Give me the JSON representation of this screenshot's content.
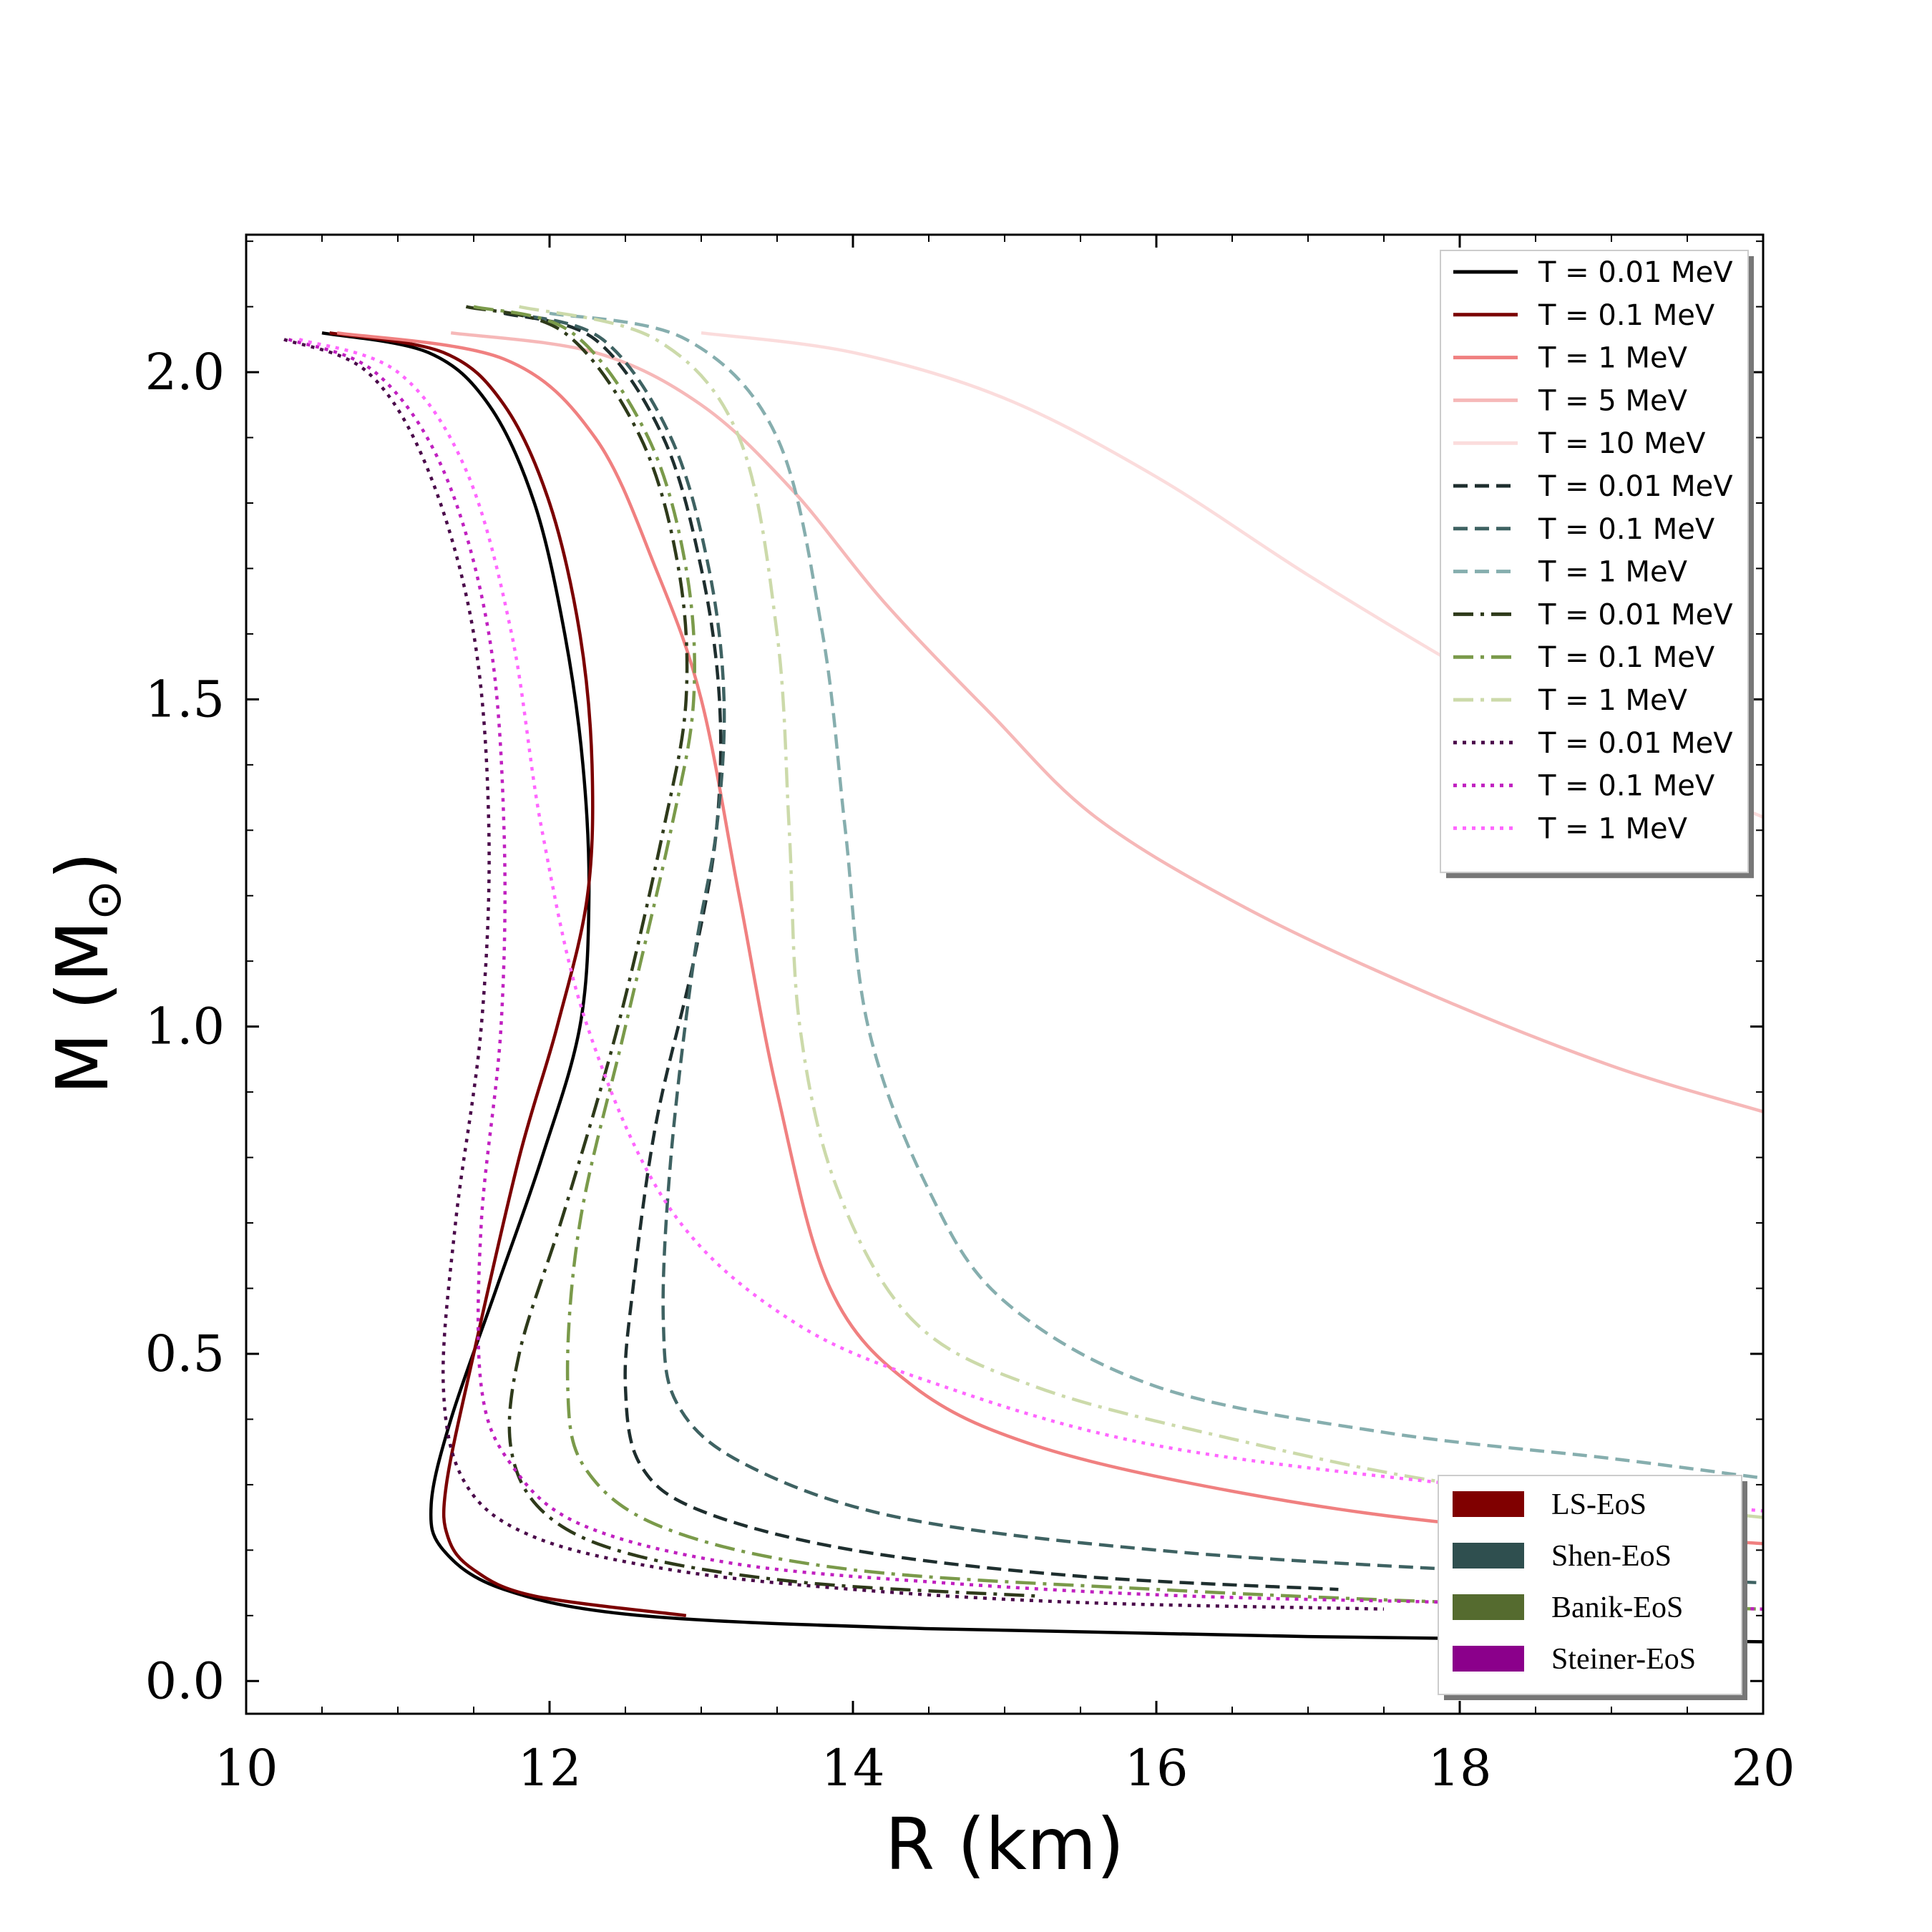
{
  "chart_data": {
    "type": "line",
    "title": "",
    "xlabel": "R (km)",
    "ylabel_main": "M (M",
    "ylabel_sub": "⊙",
    "ylabel_close": ")",
    "xlim": [
      10,
      20
    ],
    "ylim": [
      -0.05,
      2.21
    ],
    "xticks": [
      10,
      12,
      14,
      16,
      18,
      20
    ],
    "xtick_labels": [
      "10",
      "12",
      "14",
      "16",
      "18",
      "20"
    ],
    "yticks": [
      0.0,
      0.5,
      1.0,
      1.5,
      2.0
    ],
    "ytick_labels": [
      "0.0",
      "0.5",
      "1.0",
      "1.5",
      "2.0"
    ],
    "grid": false,
    "legend_position": "top-right",
    "series": [
      {
        "name": "T = 0.01 MeV",
        "eos": "LS",
        "color": "#000000",
        "dash": "solid",
        "x": [
          10.5,
          11.2,
          11.6,
          11.9,
          12.1,
          12.22,
          12.26,
          12.2,
          11.95,
          11.65,
          11.35,
          11.22,
          11.3,
          11.7,
          12.6,
          14.5,
          17.0,
          20.0
        ],
        "y": [
          2.06,
          2.03,
          1.95,
          1.8,
          1.6,
          1.4,
          1.2,
          1.0,
          0.8,
          0.6,
          0.4,
          0.27,
          0.2,
          0.14,
          0.1,
          0.08,
          0.068,
          0.06
        ]
      },
      {
        "name": "T = 0.1 MeV",
        "eos": "LS",
        "color": "#7b0000",
        "dash": "solid",
        "x": [
          10.55,
          11.3,
          11.7,
          12.0,
          12.2,
          12.28,
          12.25,
          12.05,
          11.8,
          11.5,
          11.32,
          11.33,
          11.5,
          11.9,
          12.9
        ],
        "y": [
          2.06,
          2.03,
          1.95,
          1.8,
          1.6,
          1.4,
          1.2,
          1.0,
          0.8,
          0.5,
          0.3,
          0.22,
          0.17,
          0.13,
          0.1
        ]
      },
      {
        "name": "T = 1 MeV",
        "eos": "LS",
        "color": "#f08080",
        "dash": "solid",
        "x": [
          10.6,
          11.7,
          12.3,
          12.7,
          13.0,
          13.25,
          13.5,
          13.85,
          14.4,
          15.2,
          16.5,
          18.0,
          20.0
        ],
        "y": [
          2.06,
          2.02,
          1.9,
          1.7,
          1.5,
          1.2,
          0.9,
          0.6,
          0.45,
          0.36,
          0.29,
          0.24,
          0.21
        ]
      },
      {
        "name": "T = 5 MeV",
        "eos": "LS",
        "color": "#f6b8b8",
        "dash": "solid",
        "x": [
          11.35,
          12.3,
          13.0,
          13.6,
          14.2,
          14.9,
          15.6,
          16.6,
          17.8,
          19.0,
          20.0
        ],
        "y": [
          2.06,
          2.03,
          1.95,
          1.82,
          1.65,
          1.48,
          1.32,
          1.18,
          1.05,
          0.94,
          0.87
        ]
      },
      {
        "name": "T = 10 MeV",
        "eos": "LS",
        "color": "#fbdcdc",
        "dash": "solid",
        "x": [
          13.0,
          14.0,
          15.0,
          16.0,
          17.0,
          18.0,
          19.0,
          20.0
        ],
        "y": [
          2.06,
          2.03,
          1.96,
          1.84,
          1.69,
          1.55,
          1.42,
          1.32
        ]
      },
      {
        "name": "T = 0.01 MeV",
        "eos": "Shen",
        "color": "#1e2e2e",
        "dash": "dashed",
        "x": [
          11.7,
          12.3,
          12.75,
          13.0,
          13.12,
          13.1,
          12.95,
          12.7,
          12.55,
          12.5,
          12.6,
          13.0,
          14.0,
          15.5,
          17.2
        ],
        "y": [
          2.09,
          2.05,
          1.9,
          1.7,
          1.5,
          1.3,
          1.1,
          0.85,
          0.6,
          0.45,
          0.33,
          0.26,
          0.2,
          0.16,
          0.14
        ]
      },
      {
        "name": "T = 0.1 MeV",
        "eos": "Shen",
        "color": "#3e6262",
        "dash": "dashed",
        "x": [
          11.75,
          12.35,
          12.8,
          13.05,
          13.15,
          13.1,
          12.95,
          12.8,
          12.75,
          12.85,
          13.3,
          14.3,
          16.0,
          18.0,
          20.0
        ],
        "y": [
          2.09,
          2.05,
          1.9,
          1.7,
          1.5,
          1.3,
          1.1,
          0.8,
          0.55,
          0.42,
          0.33,
          0.25,
          0.2,
          0.17,
          0.15
        ]
      },
      {
        "name": "T = 1 MeV",
        "eos": "Shen",
        "color": "#86aeae",
        "dash": "dashed",
        "x": [
          12.0,
          12.9,
          13.5,
          13.8,
          13.95,
          14.1,
          14.5,
          15.0,
          16.0,
          17.5,
          19.0,
          20.0
        ],
        "y": [
          2.09,
          2.05,
          1.9,
          1.6,
          1.3,
          1.0,
          0.75,
          0.58,
          0.45,
          0.38,
          0.34,
          0.31
        ]
      },
      {
        "name": "T = 0.01 MeV",
        "eos": "Banik",
        "color": "#2e3a1a",
        "dash": "dashdot",
        "x": [
          11.45,
          12.1,
          12.6,
          12.85,
          12.9,
          12.75,
          12.45,
          12.1,
          11.8,
          11.75,
          12.0,
          12.6,
          13.7,
          15.2
        ],
        "y": [
          2.1,
          2.06,
          1.9,
          1.7,
          1.5,
          1.3,
          1.0,
          0.72,
          0.5,
          0.35,
          0.25,
          0.19,
          0.15,
          0.13
        ]
      },
      {
        "name": "T = 0.1 MeV",
        "eos": "Banik",
        "color": "#7a9a4a",
        "dash": "dashdot",
        "x": [
          11.5,
          12.15,
          12.65,
          12.9,
          12.95,
          12.8,
          12.5,
          12.2,
          12.12,
          12.25,
          12.8,
          14.0,
          16.0,
          18.0,
          20.0
        ],
        "y": [
          2.1,
          2.06,
          1.9,
          1.7,
          1.5,
          1.3,
          1.0,
          0.7,
          0.45,
          0.32,
          0.23,
          0.17,
          0.14,
          0.12,
          0.11
        ]
      },
      {
        "name": "T = 1 MeV",
        "eos": "Banik",
        "color": "#ccdaaa",
        "dash": "dashdot",
        "x": [
          11.8,
          12.7,
          13.25,
          13.5,
          13.58,
          13.65,
          13.9,
          14.4,
          15.2,
          16.5,
          18.0,
          20.0
        ],
        "y": [
          2.1,
          2.05,
          1.9,
          1.6,
          1.3,
          1.0,
          0.75,
          0.55,
          0.45,
          0.37,
          0.3,
          0.25
        ]
      },
      {
        "name": "T = 0.01 MeV",
        "eos": "Steiner",
        "color": "#4a0a4a",
        "dash": "dotted",
        "x": [
          10.25,
          10.8,
          11.2,
          11.5,
          11.6,
          11.55,
          11.38,
          11.3,
          11.45,
          11.9,
          12.8,
          14.0,
          15.5,
          17.5
        ],
        "y": [
          2.05,
          2.0,
          1.85,
          1.6,
          1.3,
          1.0,
          0.7,
          0.45,
          0.3,
          0.22,
          0.17,
          0.14,
          0.12,
          0.11
        ]
      },
      {
        "name": "T = 0.1 MeV",
        "eos": "Steiner",
        "color": "#c020c0",
        "dash": "dotted",
        "x": [
          10.28,
          10.85,
          11.3,
          11.6,
          11.7,
          11.68,
          11.55,
          11.55,
          11.75,
          12.2,
          13.2,
          14.6,
          16.2,
          18.0,
          20.0
        ],
        "y": [
          2.05,
          2.0,
          1.85,
          1.6,
          1.3,
          1.0,
          0.7,
          0.45,
          0.33,
          0.24,
          0.18,
          0.15,
          0.13,
          0.12,
          0.11
        ]
      },
      {
        "name": "T = 1 MeV",
        "eos": "Steiner",
        "color": "#ff66ff",
        "dash": "dotted",
        "x": [
          10.35,
          11.0,
          11.45,
          11.75,
          11.95,
          12.25,
          12.8,
          13.6,
          14.6,
          16.0,
          18.0,
          20.0
        ],
        "y": [
          2.05,
          2.0,
          1.85,
          1.6,
          1.3,
          1.0,
          0.72,
          0.55,
          0.45,
          0.36,
          0.3,
          0.26
        ]
      }
    ],
    "legend_eos": [
      {
        "label": "LS-EoS",
        "color": "#800000"
      },
      {
        "label": "Shen-EoS",
        "color": "#2f4f4f"
      },
      {
        "label": "Banik-EoS",
        "color": "#556b2f"
      },
      {
        "label": "Steiner-EoS",
        "color": "#8b008b"
      }
    ]
  }
}
